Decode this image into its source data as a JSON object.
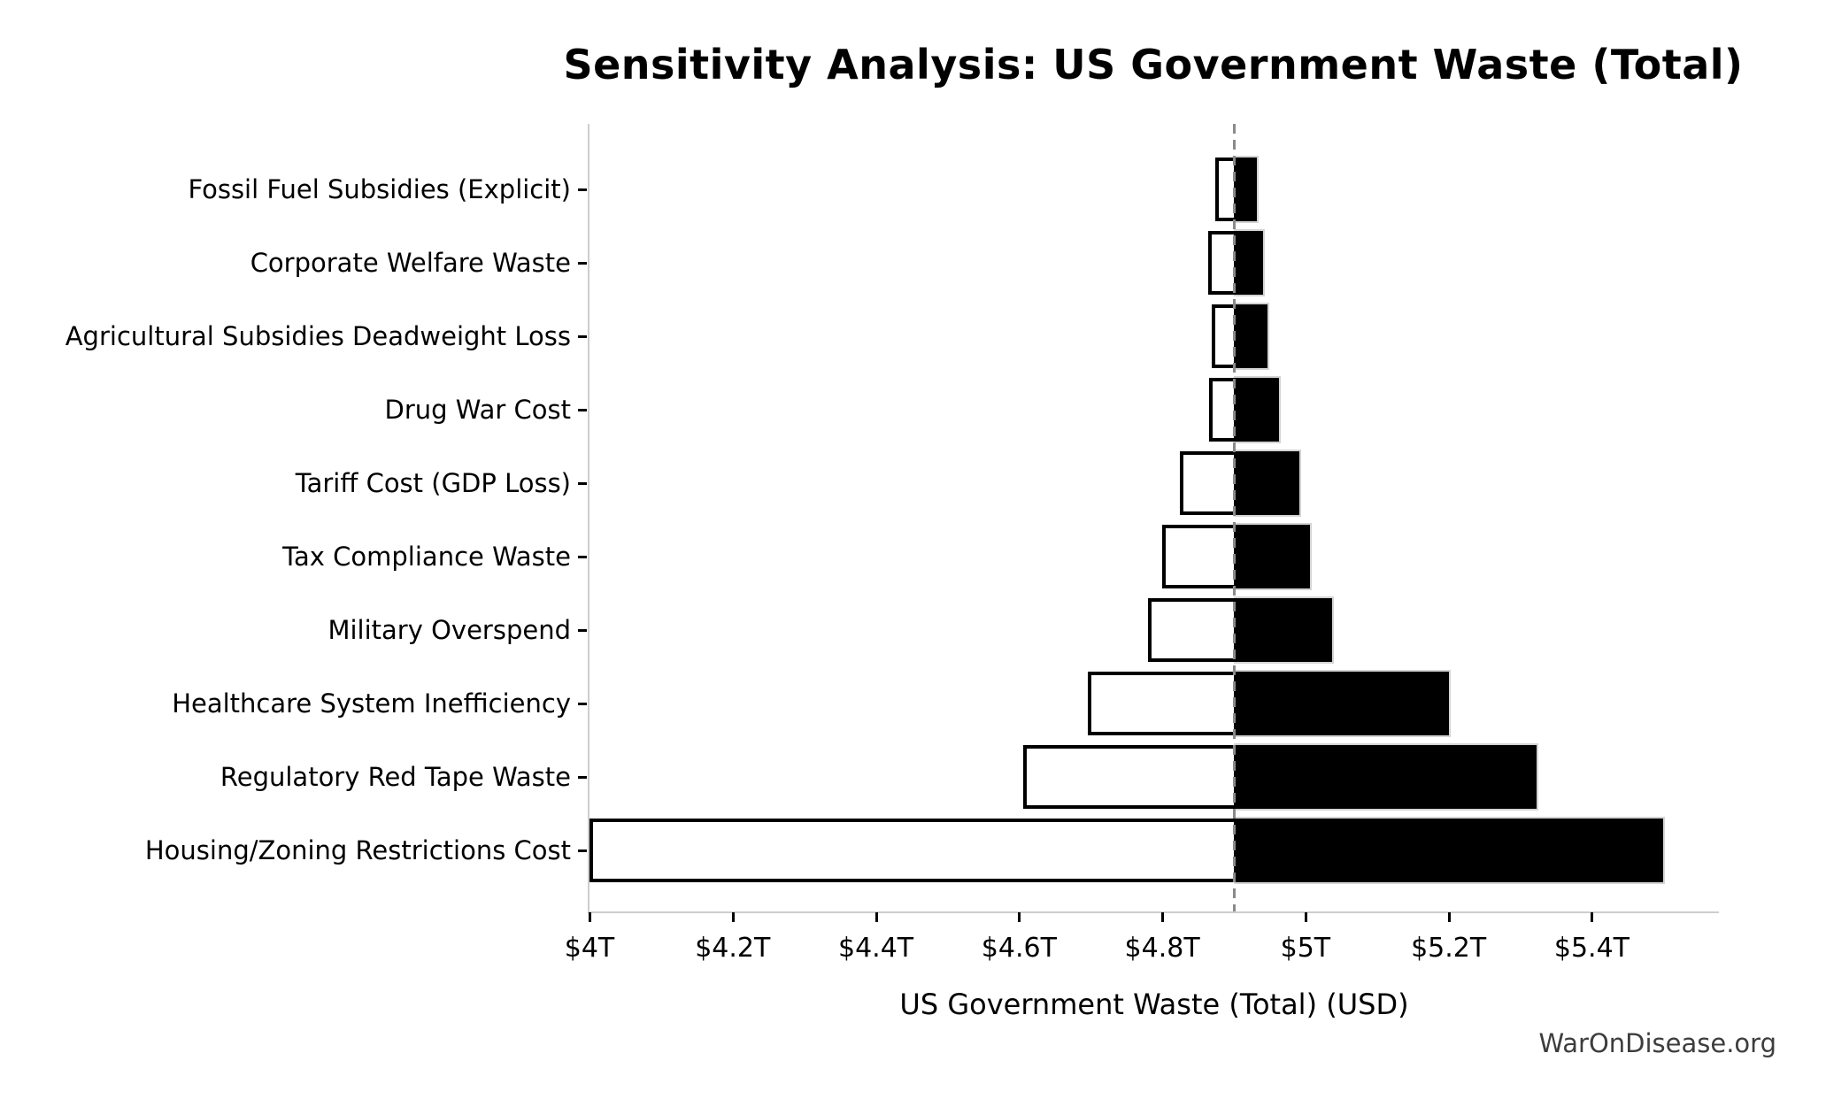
{
  "chart_data": {
    "type": "bar",
    "subtype": "tornado-sensitivity",
    "title": "Sensitivity Analysis: US Government Waste (Total)",
    "xlabel": "US Government Waste (Total) (USD)",
    "unit": "trillion USD",
    "orientation": "horizontal",
    "baseline": 4.9,
    "xlim": [
      4.0,
      5.575
    ],
    "grid": false,
    "legend": "none",
    "x_ticks": [
      {
        "value": 4.0,
        "label": "$4T"
      },
      {
        "value": 4.2,
        "label": "$4.2T"
      },
      {
        "value": 4.4,
        "label": "$4.4T"
      },
      {
        "value": 4.6,
        "label": "$4.6T"
      },
      {
        "value": 4.8,
        "label": "$4.8T"
      },
      {
        "value": 5.0,
        "label": "$5T"
      },
      {
        "value": 5.2,
        "label": "$5.2T"
      },
      {
        "value": 5.4,
        "label": "$5.4T"
      }
    ],
    "rows": [
      {
        "label": "Fossil Fuel Subsidies (Explicit)",
        "low": 4.874,
        "high": 4.932
      },
      {
        "label": "Corporate Welfare Waste",
        "low": 4.864,
        "high": 4.941
      },
      {
        "label": "Agricultural Subsidies Deadweight Loss",
        "low": 4.869,
        "high": 4.947
      },
      {
        "label": "Drug War Cost",
        "low": 4.865,
        "high": 4.963
      },
      {
        "label": "Tariff Cost (GDP Loss)",
        "low": 4.825,
        "high": 4.992
      },
      {
        "label": "Tax Compliance Waste",
        "low": 4.8,
        "high": 5.006
      },
      {
        "label": "Military Overspend",
        "low": 4.78,
        "high": 5.037
      },
      {
        "label": "Healthcare System Inefficiency",
        "low": 4.696,
        "high": 5.2
      },
      {
        "label": "Regulatory Red Tape Waste",
        "low": 4.606,
        "high": 5.323
      },
      {
        "label": "Housing/Zoning Restrictions Cost",
        "low": 4.0,
        "high": 5.5
      }
    ],
    "colors": {
      "low_bar_fill": "#ffffff",
      "low_bar_border": "#000000",
      "high_bar_fill": "#000000",
      "high_bar_edge": "#d4d4d4",
      "baseline_dash": "#8a8a8a",
      "spine": "#cdcdcd",
      "text": "#000000",
      "watermark_text": "#3d3d3d"
    }
  },
  "watermark": "WarOnDisease.org"
}
